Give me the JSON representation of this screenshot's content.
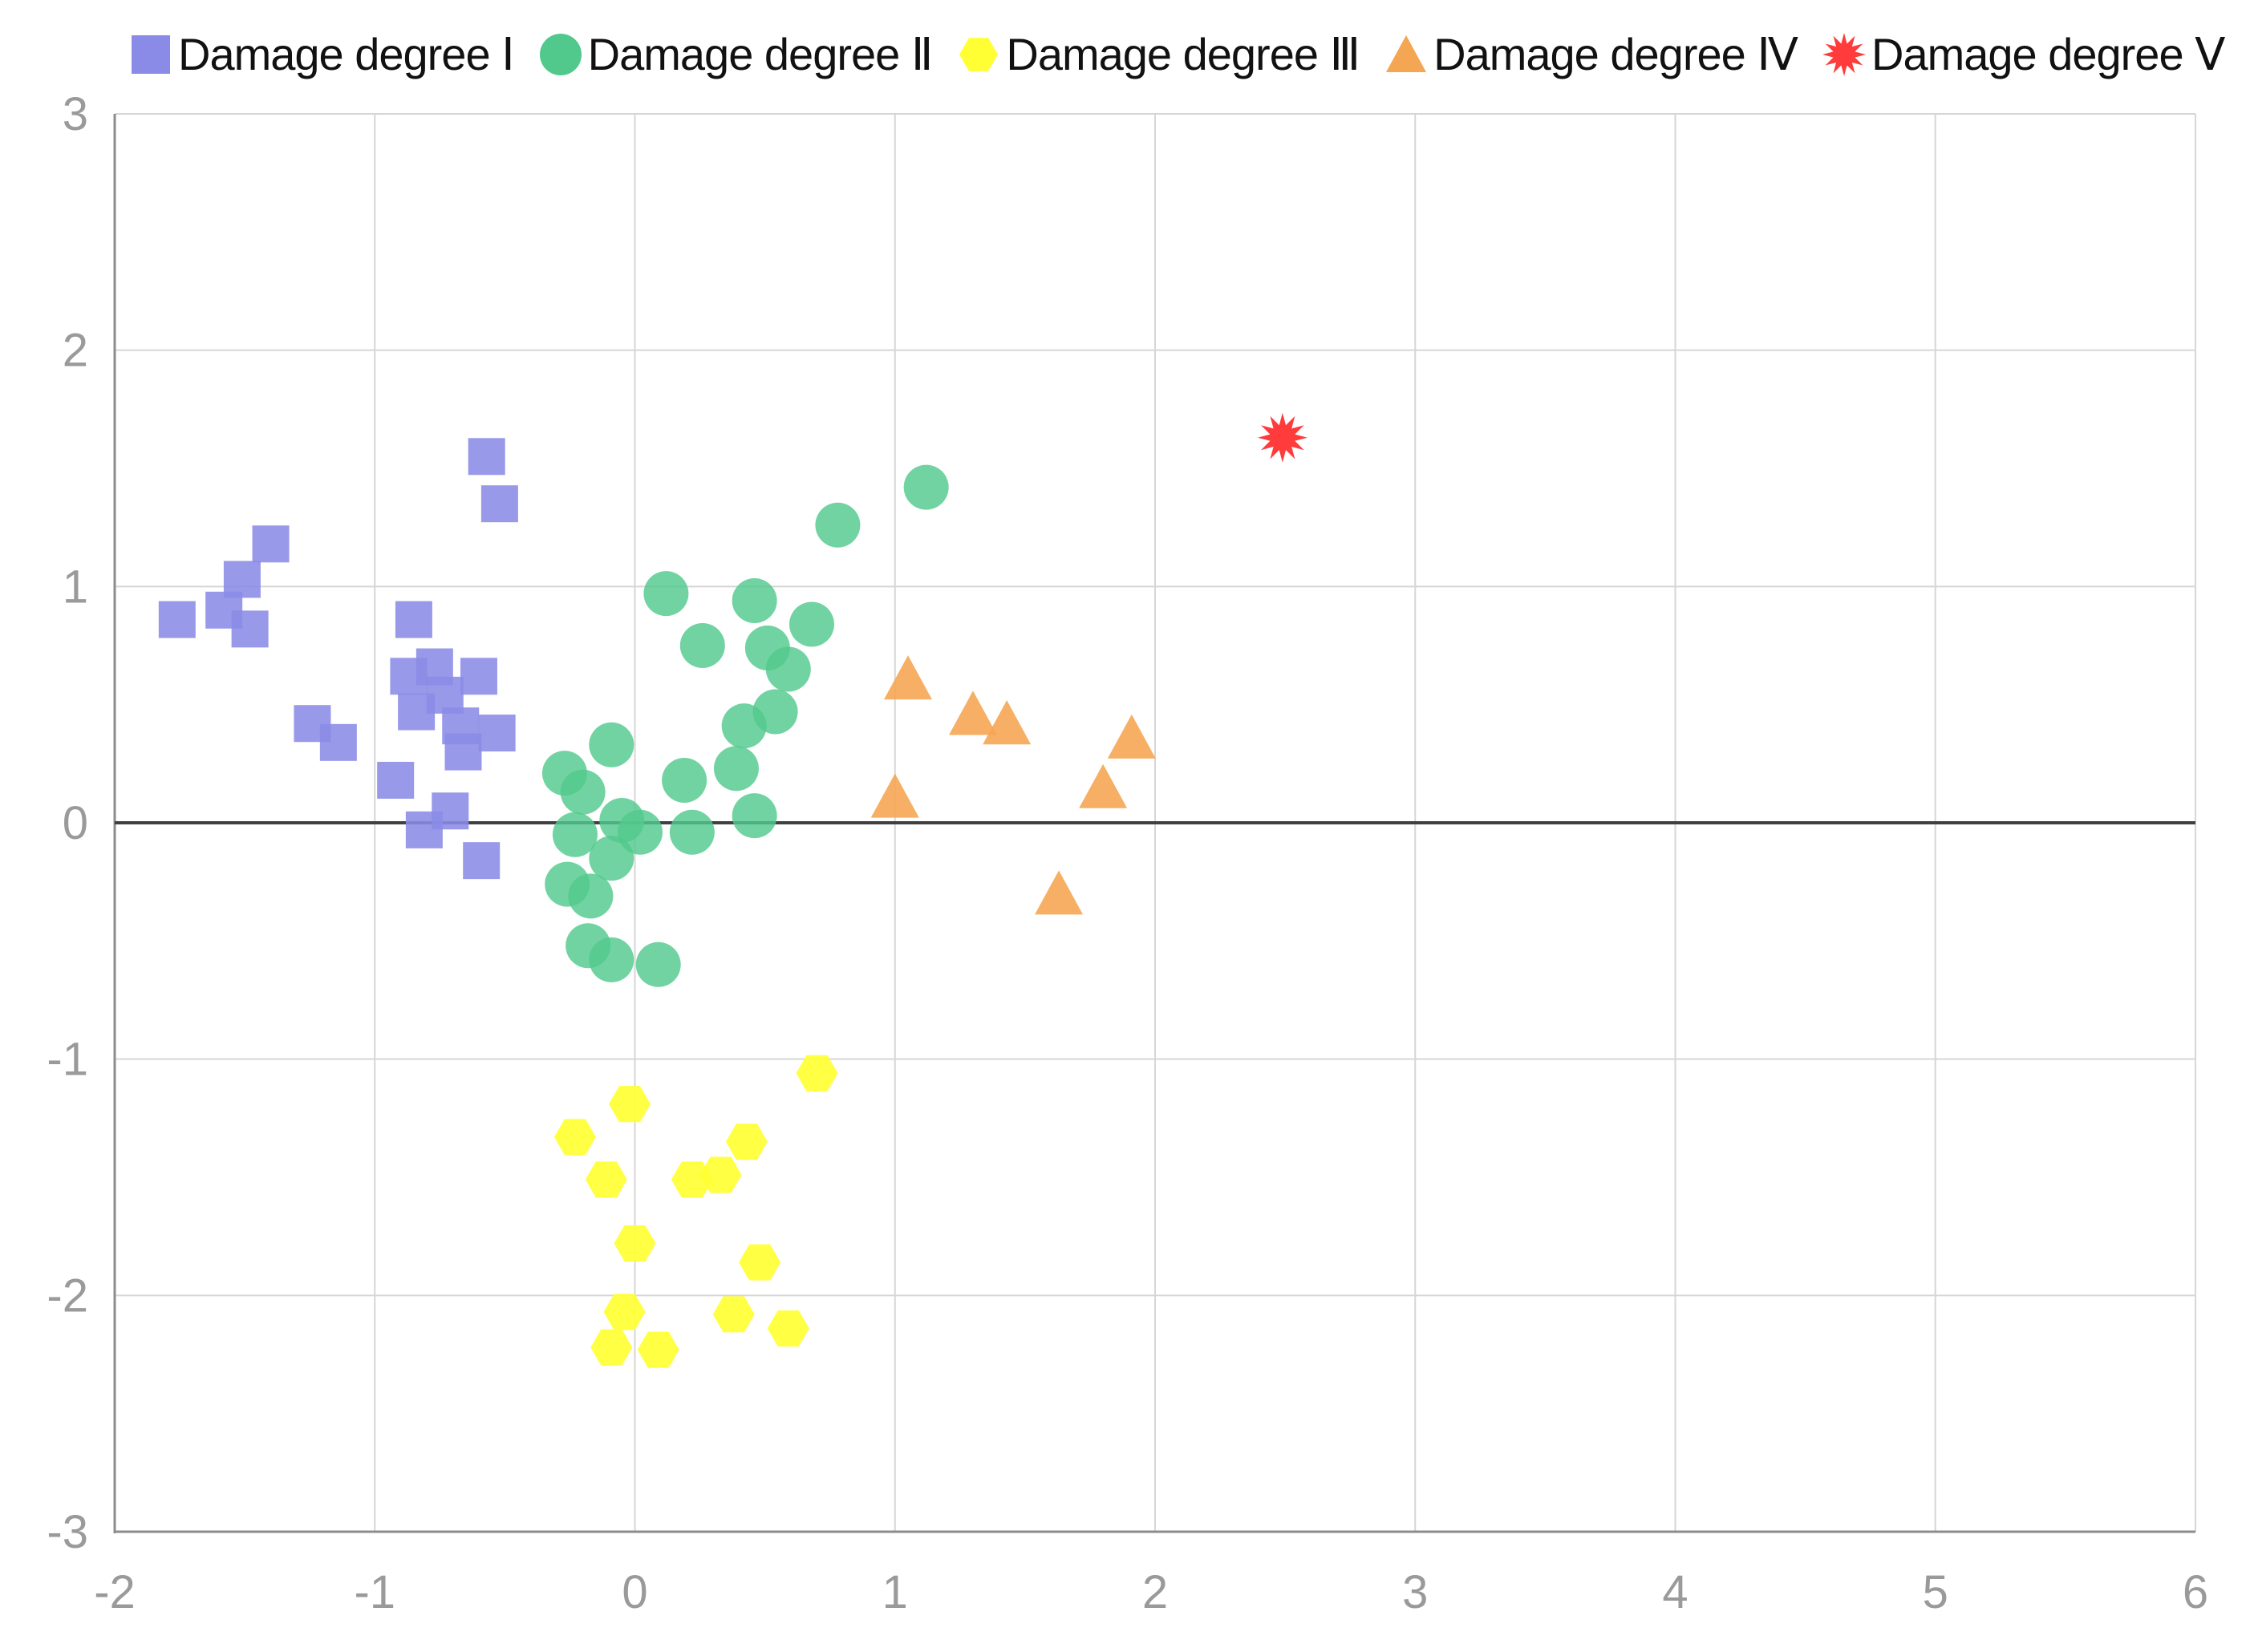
{
  "chart_data": {
    "type": "scatter",
    "title": "",
    "xlabel": "",
    "ylabel": "",
    "xlim": [
      -2,
      6
    ],
    "ylim": [
      -3,
      3
    ],
    "x_ticks": [
      -2,
      -1,
      0,
      1,
      2,
      3,
      4,
      5,
      6
    ],
    "y_ticks": [
      -3,
      -2,
      -1,
      0,
      1,
      2,
      3
    ],
    "x_tick_labels": [
      "-2",
      "-1",
      "0",
      "1",
      "2",
      "3",
      "4",
      "5",
      "6"
    ],
    "y_tick_labels": [
      "-3",
      "-2",
      "-1",
      "0",
      "1",
      "2",
      "3"
    ],
    "grid": true,
    "legend_position": "top",
    "series": [
      {
        "name": "Damage degree Ⅰ",
        "marker": "square",
        "color": "#8a8be6",
        "points": [
          [
            -1.76,
            0.86
          ],
          [
            -1.58,
            0.9
          ],
          [
            -1.51,
            1.03
          ],
          [
            -1.48,
            0.82
          ],
          [
            -1.4,
            1.18
          ],
          [
            -1.24,
            0.42
          ],
          [
            -1.14,
            0.34
          ],
          [
            -0.92,
            0.18
          ],
          [
            -0.87,
            0.62
          ],
          [
            -0.85,
            0.86
          ],
          [
            -0.84,
            0.47
          ],
          [
            -0.81,
            -0.03
          ],
          [
            -0.77,
            0.66
          ],
          [
            -0.73,
            0.54
          ],
          [
            -0.71,
            0.05
          ],
          [
            -0.67,
            0.41
          ],
          [
            -0.66,
            0.3
          ],
          [
            -0.6,
            0.62
          ],
          [
            -0.59,
            -0.16
          ],
          [
            -0.57,
            1.55
          ],
          [
            -0.53,
            0.38
          ],
          [
            -0.52,
            1.35
          ]
        ]
      },
      {
        "name": "Damage degree Ⅱ",
        "marker": "circle",
        "color": "#52c98c",
        "points": [
          [
            -0.27,
            0.21
          ],
          [
            -0.26,
            -0.26
          ],
          [
            -0.23,
            -0.05
          ],
          [
            -0.2,
            0.13
          ],
          [
            -0.18,
            -0.52
          ],
          [
            -0.17,
            -0.31
          ],
          [
            -0.09,
            0.33
          ],
          [
            -0.09,
            -0.15
          ],
          [
            -0.09,
            -0.58
          ],
          [
            -0.05,
            0.01
          ],
          [
            0.02,
            -0.04
          ],
          [
            0.09,
            -0.6
          ],
          [
            0.12,
            0.97
          ],
          [
            0.19,
            0.18
          ],
          [
            0.22,
            -0.04
          ],
          [
            0.26,
            0.75
          ],
          [
            0.39,
            0.23
          ],
          [
            0.42,
            0.41
          ],
          [
            0.46,
            0.94
          ],
          [
            0.46,
            0.03
          ],
          [
            0.51,
            0.74
          ],
          [
            0.54,
            0.47
          ],
          [
            0.59,
            0.65
          ],
          [
            0.68,
            0.84
          ],
          [
            0.78,
            1.26
          ],
          [
            1.12,
            1.42
          ]
        ]
      },
      {
        "name": "Damage degree Ⅲ",
        "marker": "hexagon",
        "color": "#ffff33",
        "points": [
          [
            -0.23,
            -1.33
          ],
          [
            -0.11,
            -1.51
          ],
          [
            -0.09,
            -2.22
          ],
          [
            -0.04,
            -2.07
          ],
          [
            -0.02,
            -1.19
          ],
          [
            0.0,
            -1.78
          ],
          [
            0.09,
            -2.23
          ],
          [
            0.22,
            -1.51
          ],
          [
            0.33,
            -1.49
          ],
          [
            0.38,
            -2.08
          ],
          [
            0.43,
            -1.35
          ],
          [
            0.48,
            -1.86
          ],
          [
            0.59,
            -2.14
          ],
          [
            0.7,
            -1.06
          ]
        ]
      },
      {
        "name": "Damage degree Ⅳ",
        "marker": "triangle",
        "color": "#f5a653",
        "points": [
          [
            1.0,
            0.1
          ],
          [
            1.05,
            0.6
          ],
          [
            1.3,
            0.45
          ],
          [
            1.43,
            0.41
          ],
          [
            1.63,
            -0.31
          ],
          [
            1.8,
            0.14
          ],
          [
            1.91,
            0.35
          ]
        ]
      },
      {
        "name": "Damage degree Ⅴ",
        "marker": "star",
        "color": "#ff3b3b",
        "points": [
          [
            2.49,
            1.63
          ]
        ]
      }
    ]
  }
}
